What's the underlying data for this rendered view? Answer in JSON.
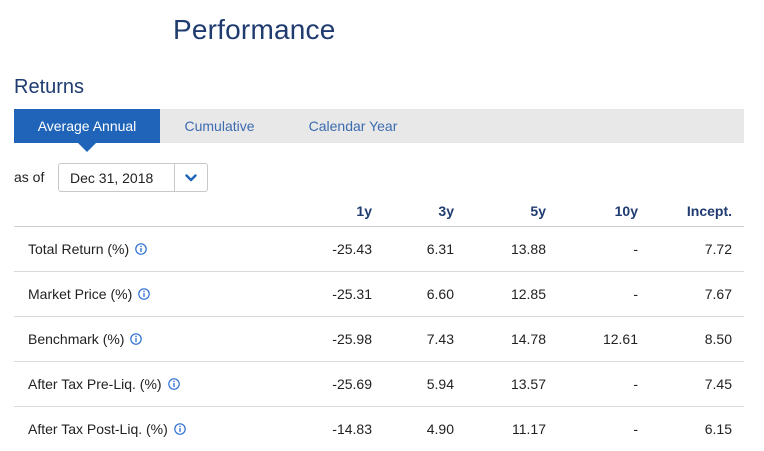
{
  "page": {
    "title": "Performance"
  },
  "returns": {
    "title": "Returns",
    "tabs": [
      {
        "label": "Average Annual",
        "active": true
      },
      {
        "label": "Cumulative",
        "active": false
      },
      {
        "label": "Calendar Year",
        "active": false
      }
    ],
    "as_of_label": "as of",
    "as_of_date": "Dec 31, 2018",
    "columns": [
      "1y",
      "3y",
      "5y",
      "10y",
      "Incept."
    ],
    "rows": [
      {
        "label": "Total Return (%)",
        "values": [
          "-25.43",
          "6.31",
          "13.88",
          "-",
          "7.72"
        ]
      },
      {
        "label": "Market Price (%)",
        "values": [
          "-25.31",
          "6.60",
          "12.85",
          "-",
          "7.67"
        ]
      },
      {
        "label": "Benchmark (%)",
        "values": [
          "-25.98",
          "7.43",
          "14.78",
          "12.61",
          "8.50"
        ]
      },
      {
        "label": "After Tax Pre-Liq. (%)",
        "values": [
          "-25.69",
          "5.94",
          "13.57",
          "-",
          "7.45"
        ]
      },
      {
        "label": "After Tax Post-Liq. (%)",
        "values": [
          "-14.83",
          "4.90",
          "11.17",
          "-",
          "6.15"
        ]
      }
    ]
  },
  "colors": {
    "brand_navy": "#1f3b70",
    "active_tab": "#1f64b8",
    "link_blue": "#3c6bb0",
    "info_icon": "#2a6ed4"
  },
  "icons": {
    "info": "info-circle-icon",
    "dropdown": "chevron-down-icon"
  }
}
